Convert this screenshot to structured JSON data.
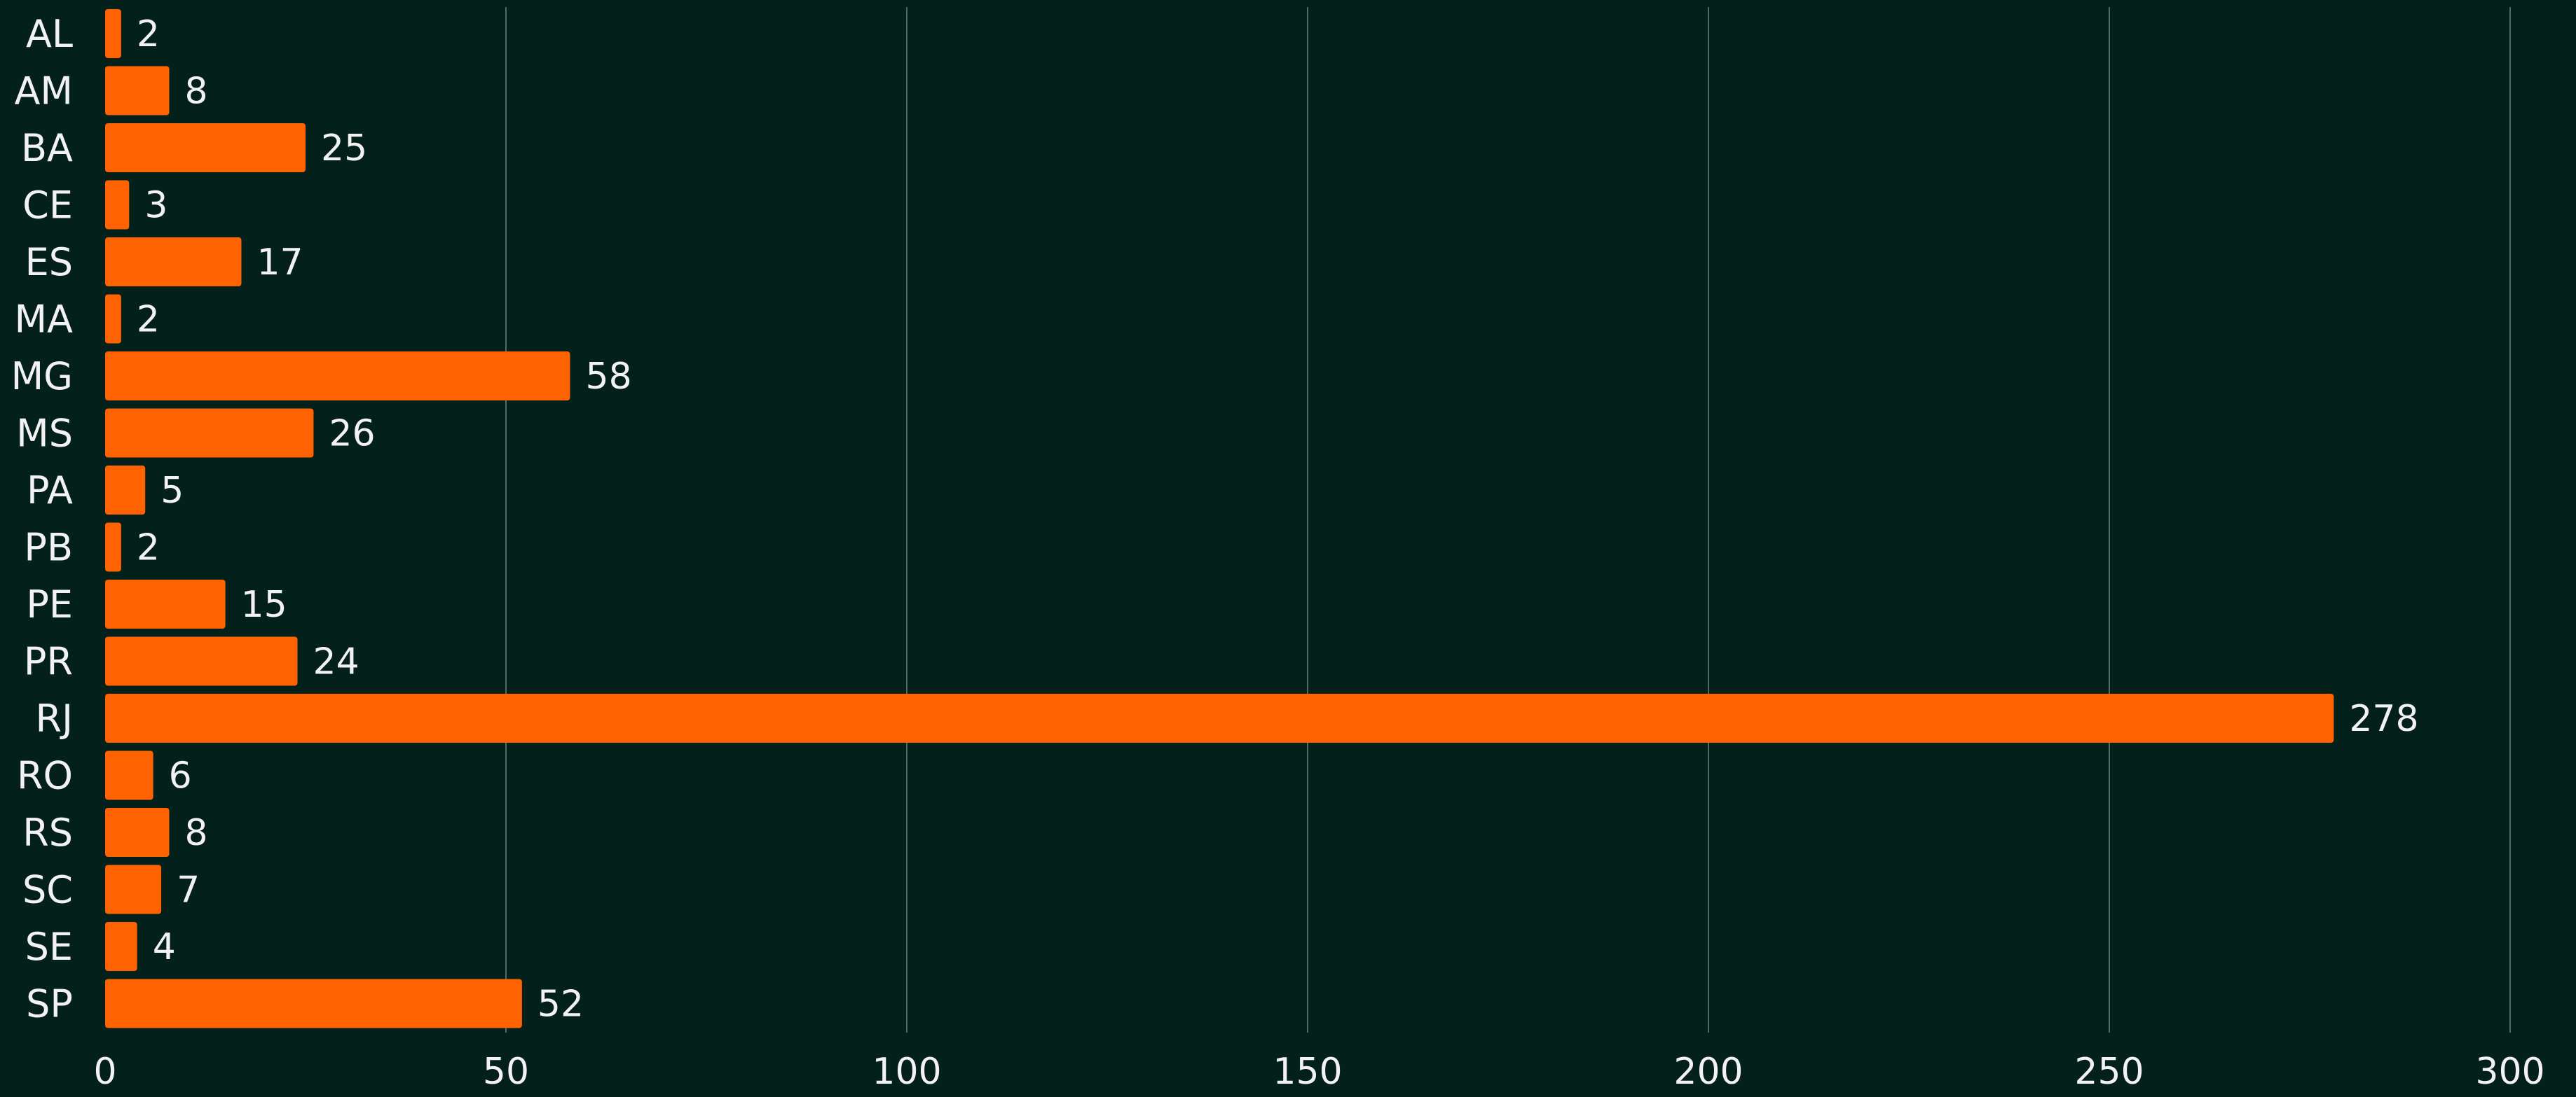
{
  "chart_data": {
    "type": "bar",
    "orientation": "horizontal",
    "title": "",
    "xlabel": "",
    "ylabel": "",
    "categories": [
      "AL",
      "AM",
      "BA",
      "CE",
      "ES",
      "MA",
      "MG",
      "MS",
      "PA",
      "PB",
      "PE",
      "PR",
      "RJ",
      "RO",
      "RS",
      "SC",
      "SE",
      "SP"
    ],
    "values": [
      2,
      8,
      25,
      3,
      17,
      2,
      58,
      26,
      5,
      2,
      15,
      24,
      278,
      6,
      8,
      7,
      4,
      52
    ],
    "xlim": [
      0,
      300
    ],
    "xticks": [
      0,
      50,
      100,
      150,
      200,
      250,
      300
    ],
    "grid": true,
    "legend": "none",
    "colors": {
      "background": "#03201b",
      "bar": "#ff6200",
      "gridline": "#4f6b65",
      "text": "#f2f2f2"
    }
  }
}
